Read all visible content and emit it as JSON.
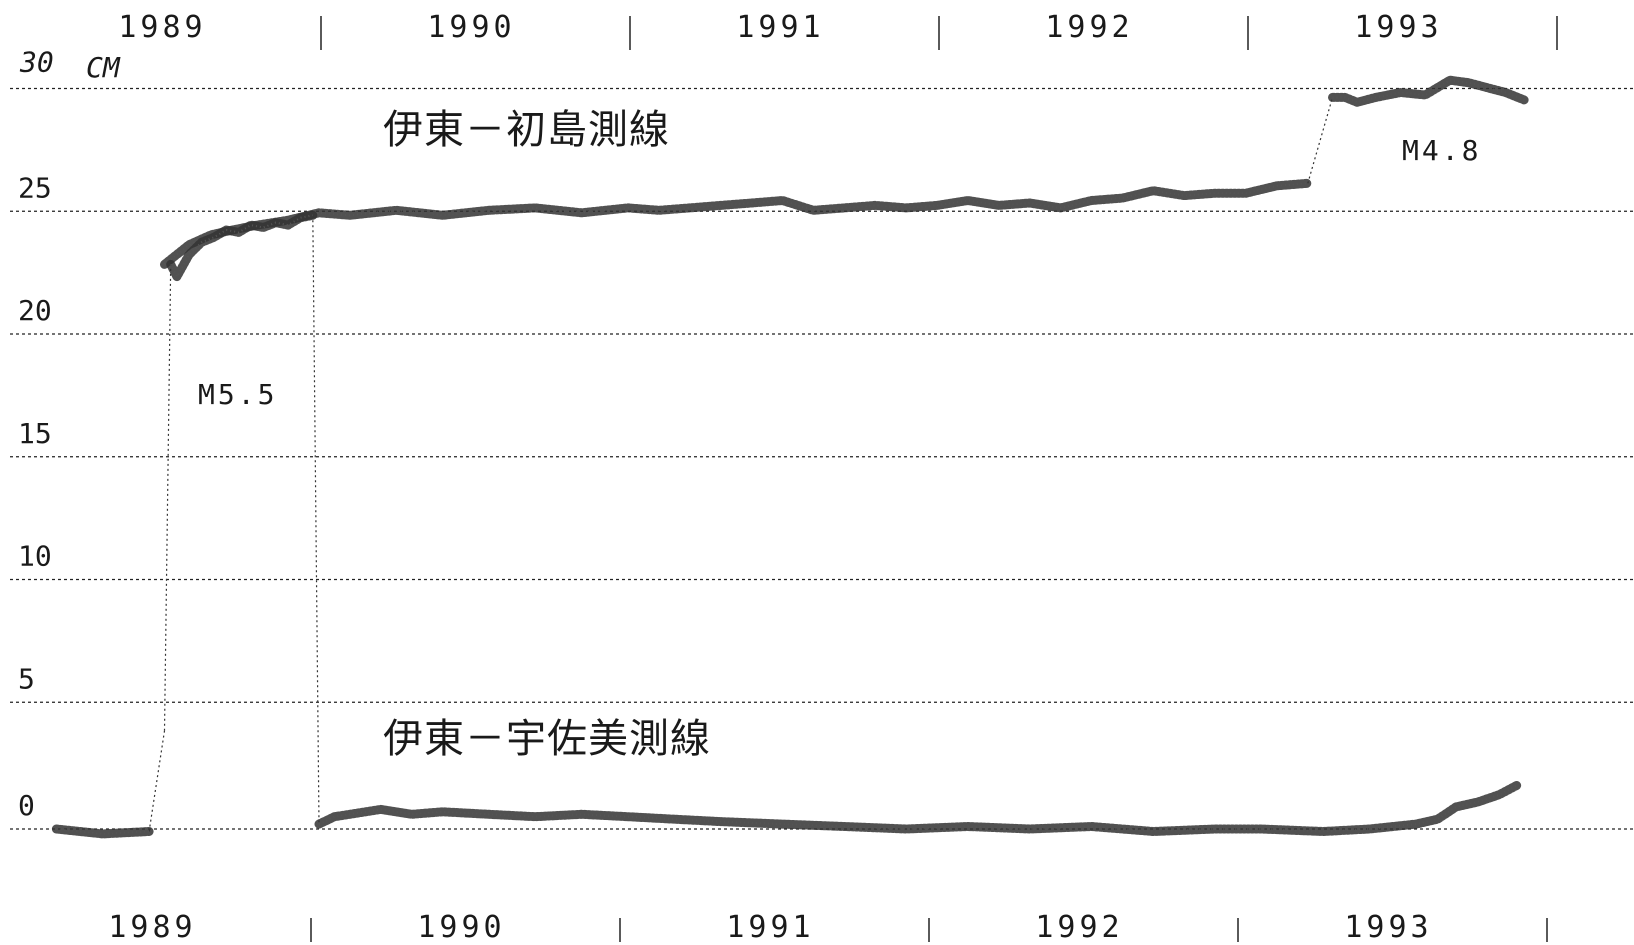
{
  "chart_data": {
    "type": "line",
    "title": "",
    "xlabel": "",
    "ylabel": "",
    "unit": "CM",
    "xlim": [
      1989.0,
      1994.2
    ],
    "ylim": [
      -2.5,
      31
    ],
    "x_tick_labels": [
      "1989",
      "1990",
      "1991",
      "1992",
      "1993"
    ],
    "x_tick_positions": [
      1989.5,
      1990.5,
      1991.5,
      1992.5,
      1993.5
    ],
    "x_separators": [
      1990.0,
      1991.0,
      1992.0,
      1993.0,
      1994.0
    ],
    "y_ticks": [
      0,
      5,
      10,
      15,
      20,
      25,
      30
    ],
    "y_tick_labels": [
      "0",
      "5",
      "10",
      "15",
      "20",
      "25",
      "30"
    ],
    "grid": "horizontal-dashed",
    "series": [
      {
        "name": "伊東－初島測線",
        "x": [
          1989.5,
          1989.54,
          1989.58,
          1989.65,
          1989.72,
          1989.8,
          1989.9,
          1990.0,
          1990.1,
          1990.25,
          1990.4,
          1990.55,
          1990.7,
          1990.85,
          1991.0,
          1991.1,
          1991.2,
          1991.3,
          1991.4,
          1991.5,
          1991.6,
          1991.7,
          1991.8,
          1991.9,
          1992.0,
          1992.1,
          1992.2,
          1992.3,
          1992.4,
          1992.5,
          1992.6,
          1992.7,
          1992.8,
          1992.9,
          1993.0,
          1993.1,
          1993.2,
          1993.28,
          1993.32,
          1993.36,
          1993.42,
          1993.5,
          1993.58,
          1993.66,
          1993.72,
          1993.78,
          1993.84,
          1993.9
        ],
        "y": [
          23.0,
          23.4,
          23.8,
          24.2,
          24.4,
          24.6,
          24.8,
          25.1,
          25.0,
          25.2,
          25.0,
          25.2,
          25.3,
          25.1,
          25.3,
          25.2,
          25.3,
          25.4,
          25.5,
          25.6,
          25.2,
          25.3,
          25.4,
          25.3,
          25.4,
          25.6,
          25.4,
          25.5,
          25.3,
          25.6,
          25.7,
          26.0,
          25.8,
          25.9,
          25.9,
          26.2,
          26.3,
          29.8,
          29.8,
          29.6,
          29.8,
          30.0,
          29.9,
          30.5,
          30.4,
          30.2,
          30.0,
          29.7
        ]
      },
      {
        "name": "伊東－宇佐美測線",
        "x": [
          1989.15,
          1989.3,
          1989.45,
          1989.5,
          1989.52,
          1989.54,
          1989.58,
          1989.62,
          1989.66,
          1989.7,
          1989.74,
          1989.78,
          1989.82,
          1989.86,
          1989.9,
          1989.94,
          1989.98,
          1990.0,
          1990.05,
          1990.1,
          1990.2,
          1990.3,
          1990.4,
          1990.55,
          1990.7,
          1990.85,
          1991.0,
          1991.15,
          1991.3,
          1991.5,
          1991.7,
          1991.9,
          1992.1,
          1992.3,
          1992.5,
          1992.7,
          1992.9,
          1993.05,
          1993.25,
          1993.4,
          1993.55,
          1993.62,
          1993.68,
          1993.75,
          1993.82,
          1993.88
        ],
        "y": [
          0.0,
          -0.2,
          -0.1,
          4.0,
          23.0,
          22.5,
          23.4,
          23.9,
          24.1,
          24.4,
          24.3,
          24.6,
          24.5,
          24.7,
          24.6,
          24.9,
          25.0,
          0.2,
          0.5,
          0.6,
          0.8,
          0.6,
          0.7,
          0.6,
          0.5,
          0.6,
          0.5,
          0.4,
          0.3,
          0.2,
          0.1,
          0.0,
          0.1,
          0.0,
          0.1,
          -0.1,
          0.0,
          0.0,
          -0.1,
          0.0,
          0.2,
          0.4,
          0.9,
          1.1,
          1.4,
          1.8
        ]
      }
    ],
    "annotations": [
      {
        "text": "M5.5"
      },
      {
        "text": "M4.8"
      }
    ]
  }
}
